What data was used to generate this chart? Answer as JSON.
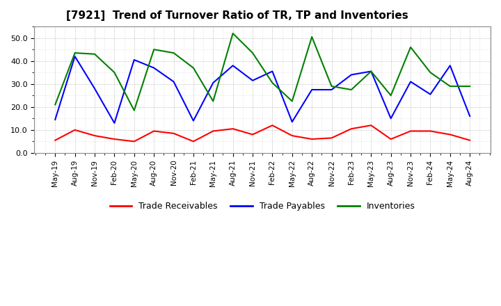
{
  "title": "[7921]  Trend of Turnover Ratio of TR, TP and Inventories",
  "x_labels": [
    "May-19",
    "Aug-19",
    "Nov-19",
    "Feb-20",
    "May-20",
    "Aug-20",
    "Nov-20",
    "Feb-21",
    "May-21",
    "Aug-21",
    "Nov-21",
    "Feb-22",
    "May-22",
    "Aug-22",
    "Nov-22",
    "Feb-23",
    "May-23",
    "Aug-23",
    "Nov-23",
    "Feb-24",
    "May-24",
    "Aug-24"
  ],
  "trade_receivables": [
    5.5,
    10.0,
    7.5,
    6.0,
    5.0,
    9.5,
    8.5,
    5.0,
    9.5,
    10.5,
    8.0,
    12.0,
    7.5,
    6.0,
    6.5,
    10.5,
    12.0,
    6.0,
    9.5,
    9.5,
    8.0,
    5.5
  ],
  "trade_payables": [
    14.5,
    42.0,
    28.0,
    13.0,
    40.5,
    37.0,
    31.0,
    14.0,
    30.5,
    38.0,
    31.5,
    35.5,
    13.5,
    27.5,
    27.5,
    34.0,
    35.5,
    15.0,
    31.0,
    25.5,
    38.0,
    16.0
  ],
  "inventories": [
    21.0,
    43.5,
    43.0,
    35.0,
    18.5,
    45.0,
    43.5,
    37.0,
    22.5,
    52.0,
    43.5,
    30.5,
    22.5,
    50.5,
    29.0,
    27.5,
    35.5,
    25.0,
    46.0,
    35.0,
    29.0,
    29.0
  ],
  "colors": {
    "trade_receivables": "#ff0000",
    "trade_payables": "#0000ff",
    "inventories": "#008000"
  },
  "ylim": [
    0,
    55
  ],
  "yticks": [
    0.0,
    10.0,
    20.0,
    30.0,
    40.0,
    50.0
  ],
  "legend_labels": [
    "Trade Receivables",
    "Trade Payables",
    "Inventories"
  ],
  "background_color": "#ffffff",
  "plot_bg_color": "#ffffff"
}
